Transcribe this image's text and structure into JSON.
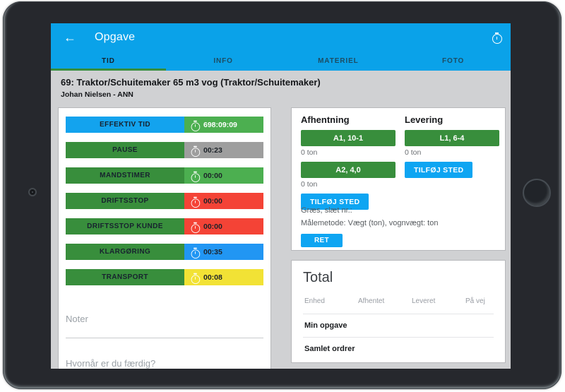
{
  "header": {
    "title": "Opgave",
    "back_icon": "←"
  },
  "tabs": {
    "items": [
      {
        "label": "TID",
        "active": true
      },
      {
        "label": "INFO",
        "active": false
      },
      {
        "label": "MATERIEL",
        "active": false
      },
      {
        "label": "FOTO",
        "active": false
      }
    ]
  },
  "task": {
    "title": "69: Traktor/Schuitemaker 65 m3 vog (Traktor/Schuitemaker)",
    "subtitle": "Johan Nielsen - ANN"
  },
  "timers": [
    {
      "label": "EFFEKTIV TID",
      "value": "698:09:09",
      "label_color": "#13a3ee",
      "badge_color": "#4caf50",
      "value_color": "#ffffff"
    },
    {
      "label": "PAUSE",
      "value": "00:23",
      "label_color": "#388e3c",
      "badge_color": "#9e9e9e",
      "value_color": "#1c2228"
    },
    {
      "label": "MANDSTIMER",
      "value": "00:00",
      "label_color": "#388e3c",
      "badge_color": "#4caf50",
      "value_color": "#1c2228"
    },
    {
      "label": "DRIFTSSTOP",
      "value": "00:00",
      "label_color": "#388e3c",
      "badge_color": "#f44336",
      "value_color": "#1c2228"
    },
    {
      "label": "DRIFTSSTOP KUNDE",
      "value": "00:00",
      "label_color": "#388e3c",
      "badge_color": "#f44336",
      "value_color": "#1c2228"
    },
    {
      "label": "KLARGØRING",
      "value": "00:35",
      "label_color": "#388e3c",
      "badge_color": "#2196f3",
      "value_color": "#1c2228"
    },
    {
      "label": "TRANSPORT",
      "value": "00:08",
      "label_color": "#388e3c",
      "badge_color": "#f2e235",
      "value_color": "#1c2228"
    }
  ],
  "notes": {
    "placeholder": "Noter",
    "finish_question": "Hvornår er du færdig?"
  },
  "locations": {
    "pickup_title": "Afhentning",
    "delivery_title": "Levering",
    "pickup_stop1": "A1, 10-1",
    "pickup_stop1_amount": "0 ton",
    "pickup_stop2": "A2, 4,0",
    "pickup_stop2_amount": "0 ton",
    "delivery_stop1": "L1, 6-4",
    "delivery_stop1_amount": "0 ton",
    "add_place_label": "TILFØJ STED",
    "crop_info": "Græs, slæt nr.:",
    "method_info": "Målemetode: Vægt (ton), vognvægt: ton",
    "edit_label": "RET"
  },
  "total": {
    "title": "Total",
    "columns": [
      "Enhed",
      "Afhentet",
      "Leveret",
      "På vej"
    ],
    "rows": [
      "Min opgave",
      "Samlet ordrer"
    ]
  },
  "colors": {
    "header_blue": "#0aa2e9",
    "tab_indicator_green": "#388e3c",
    "action_green": "#388e3c",
    "action_blue": "#0ea5f2"
  }
}
